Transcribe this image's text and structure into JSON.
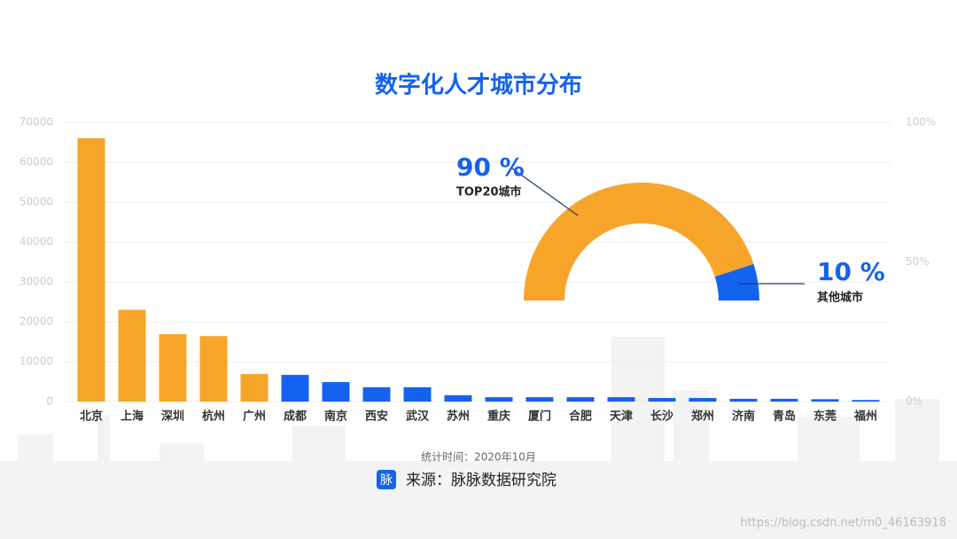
{
  "chart_data": [
    {
      "type": "bar",
      "title": "数字化人才城市分布",
      "categories": [
        "北京",
        "上海",
        "深圳",
        "杭州",
        "广州",
        "成都",
        "南京",
        "西安",
        "武汉",
        "苏州",
        "重庆",
        "厦门",
        "合肥",
        "天津",
        "长沙",
        "郑州",
        "济南",
        "青岛",
        "东莞",
        "福州"
      ],
      "values": [
        66000,
        23000,
        16900,
        16400,
        6900,
        6700,
        4900,
        3600,
        3600,
        1600,
        1100,
        1100,
        1100,
        1100,
        900,
        900,
        700,
        700,
        600,
        400
      ],
      "colors": [
        "#f7a42b",
        "#f7a42b",
        "#f7a42b",
        "#f7a42b",
        "#f7a42b",
        "#1463f0",
        "#1463f0",
        "#1463f0",
        "#1463f0",
        "#1463f0",
        "#1463f0",
        "#1463f0",
        "#1463f0",
        "#1463f0",
        "#1463f0",
        "#1463f0",
        "#1463f0",
        "#1463f0",
        "#1463f0",
        "#1463f0"
      ],
      "ylim": [
        0,
        70000
      ],
      "yticks": [
        0,
        10000,
        20000,
        30000,
        40000,
        50000,
        60000,
        70000
      ],
      "y2lim": [
        0,
        100
      ],
      "y2ticks": [
        {
          "value": 0,
          "label": "0%"
        },
        {
          "value": 50,
          "label": "50%"
        },
        {
          "value": 100,
          "label": "100%"
        }
      ],
      "grid": true
    },
    {
      "type": "donut",
      "categories": [
        "TOP20城市",
        "其他城市"
      ],
      "values": [
        90,
        10
      ],
      "value_labels": [
        "90 %",
        "10 %"
      ],
      "colors": [
        "#f7a42b",
        "#1463f0"
      ]
    }
  ],
  "footer": {
    "date": "统计时间：2020年10月",
    "icon": "脉",
    "source": "来源：脉脉数据研究院"
  },
  "watermark": "https://blog.csdn.net/m0_46163918"
}
